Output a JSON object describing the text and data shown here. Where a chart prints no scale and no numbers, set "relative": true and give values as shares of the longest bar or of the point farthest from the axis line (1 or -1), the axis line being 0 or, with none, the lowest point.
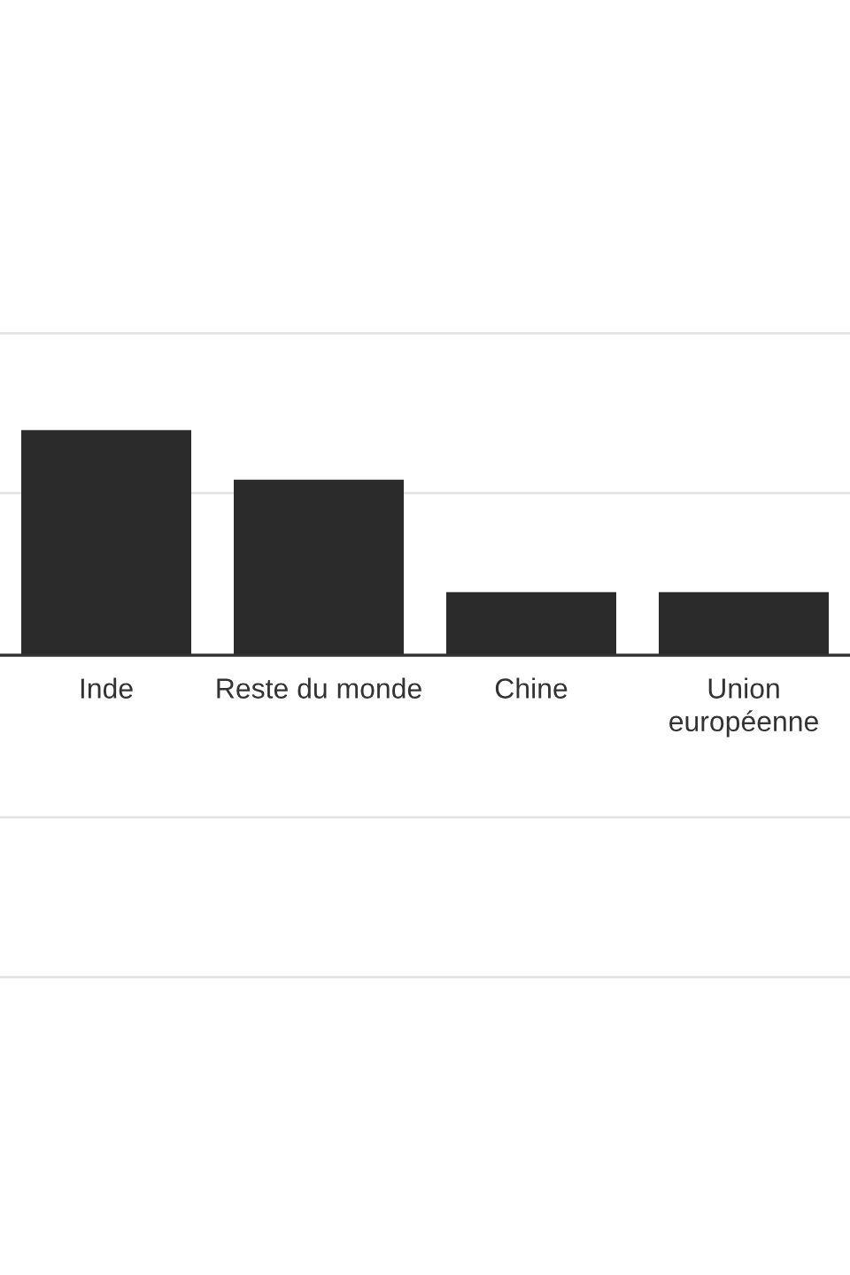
{
  "chart_data": {
    "type": "bar",
    "relative": true,
    "categories": [
      "Inde",
      "Reste du monde",
      "Chine",
      "Union\neuropéenne"
    ],
    "values": [
      1,
      0.78,
      0.28,
      0.28
    ],
    "color": "#2b2b2b",
    "ref_lines": [
      {
        "axis": "y",
        "value": 1.43,
        "color": "#e3e3e3"
      },
      {
        "axis": "y",
        "value": 0.72,
        "color": "#e3e3e3"
      },
      {
        "axis": "y",
        "value": -0.72,
        "color": "#e3e3e3"
      },
      {
        "axis": "y",
        "value": -1.43,
        "color": "#e3e3e3"
      }
    ]
  }
}
